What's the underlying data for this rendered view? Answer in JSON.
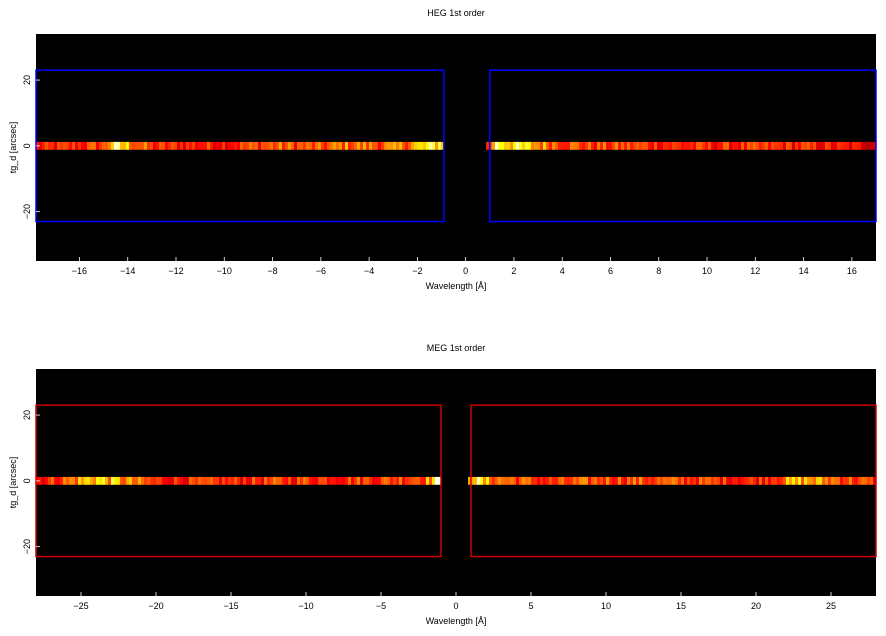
{
  "chart_data": [
    {
      "type": "heatmap",
      "title": "HEG 1st order",
      "xlabel": "Wavelength [Å]",
      "ylabel": "tg_d [arcsec]",
      "xlim": [
        -17.8,
        17.0
      ],
      "ylim": [
        -35,
        34
      ],
      "xticks": [
        -16,
        -14,
        -12,
        -10,
        -8,
        -6,
        -4,
        -2,
        0,
        2,
        4,
        6,
        8,
        10,
        12,
        14,
        16
      ],
      "yticks": [
        -20,
        0,
        20
      ],
      "xtick_labels": [
        "−16",
        "−14",
        "−12",
        "−10",
        "−8",
        "−6",
        "−4",
        "−2",
        "0",
        "2",
        "4",
        "6",
        "8",
        "10",
        "12",
        "14",
        "16"
      ],
      "ytick_labels": [
        "−20",
        "0",
        "20"
      ],
      "background_color": "#000000",
      "colormap": "hot",
      "stripe": {
        "y_center": 0,
        "half_width": 1.2,
        "gap": [
          -0.95,
          0.9
        ]
      },
      "intensity_anchors": [
        [
          -17.8,
          0.45
        ],
        [
          -15.0,
          0.55
        ],
        [
          -14.6,
          0.9
        ],
        [
          -13.0,
          0.5
        ],
        [
          -10.0,
          0.5
        ],
        [
          -8.0,
          0.6
        ],
        [
          -6.0,
          0.55
        ],
        [
          -5.0,
          0.65
        ],
        [
          -3.0,
          0.6
        ],
        [
          -2.0,
          0.75
        ],
        [
          -1.4,
          0.85
        ],
        [
          -1.0,
          0.95
        ],
        [
          0.9,
          0.45
        ],
        [
          1.3,
          1.0
        ],
        [
          1.8,
          0.9
        ],
        [
          3.0,
          0.7
        ],
        [
          5.0,
          0.55
        ],
        [
          7.0,
          0.55
        ],
        [
          9.0,
          0.5
        ],
        [
          12.0,
          0.5
        ],
        [
          14.0,
          0.5
        ],
        [
          17.0,
          0.4
        ]
      ],
      "regions": [
        {
          "x": [
            -17.8,
            -0.9
          ],
          "y": [
            -23,
            23
          ],
          "color": "#0000ff"
        },
        {
          "x": [
            1.0,
            17.0
          ],
          "y": [
            -23,
            23
          ],
          "color": "#0000ff"
        }
      ]
    },
    {
      "type": "heatmap",
      "title": "MEG 1st order",
      "xlabel": "Wavelength [Å]",
      "ylabel": "tg_d [arcsec]",
      "xlim": [
        -28.0,
        28.0
      ],
      "ylim": [
        -35,
        34
      ],
      "xticks": [
        -25,
        -20,
        -15,
        -10,
        -5,
        0,
        5,
        10,
        15,
        20,
        25
      ],
      "yticks": [
        -20,
        0,
        20
      ],
      "xtick_labels": [
        "−25",
        "−20",
        "−15",
        "−10",
        "−5",
        "0",
        "5",
        "10",
        "15",
        "20",
        "25"
      ],
      "ytick_labels": [
        "−20",
        "0",
        "20"
      ],
      "background_color": "#000000",
      "colormap": "hot",
      "stripe": {
        "y_center": 0,
        "half_width": 1.2,
        "gap": [
          -1.0,
          0.7
        ]
      },
      "intensity_anchors": [
        [
          -28.0,
          0.45
        ],
        [
          -26.0,
          0.6
        ],
        [
          -24.0,
          0.85
        ],
        [
          -20.0,
          0.5
        ],
        [
          -15.0,
          0.5
        ],
        [
          -10.0,
          0.55
        ],
        [
          -5.0,
          0.55
        ],
        [
          -2.0,
          0.65
        ],
        [
          -1.2,
          0.95
        ],
        [
          0.7,
          0.6
        ],
        [
          1.0,
          1.0
        ],
        [
          2.0,
          0.7
        ],
        [
          6.0,
          0.5
        ],
        [
          10.0,
          0.6
        ],
        [
          16.0,
          0.55
        ],
        [
          20.0,
          0.5
        ],
        [
          23.0,
          0.75
        ],
        [
          26.0,
          0.6
        ],
        [
          28.0,
          0.5
        ]
      ],
      "regions": [
        {
          "x": [
            -28.0,
            -1.0
          ],
          "y": [
            -23,
            23
          ],
          "color": "#cc0000"
        },
        {
          "x": [
            1.0,
            28.0
          ],
          "y": [
            -23,
            23
          ],
          "color": "#cc0000"
        }
      ]
    }
  ]
}
